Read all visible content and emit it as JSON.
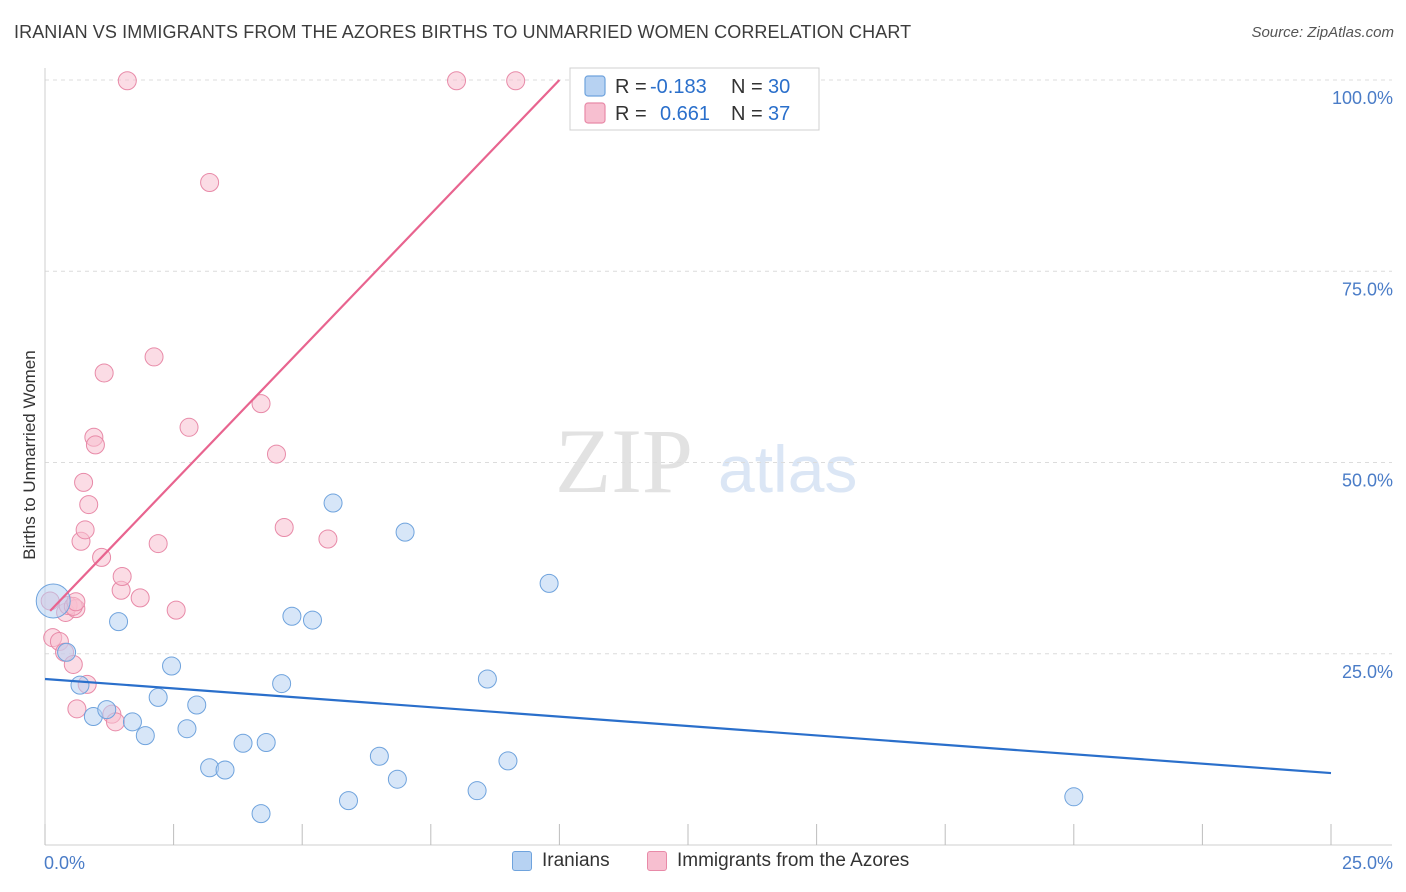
{
  "title": "IRANIAN VS IMMIGRANTS FROM THE AZORES BIRTHS TO UNMARRIED WOMEN CORRELATION CHART",
  "source": "Source: ZipAtlas.com",
  "watermark": {
    "zip": "ZIP",
    "atlas": "atlas"
  },
  "colors": {
    "blue_fill": "#b7d2f2",
    "blue_stroke": "#6fa3dd",
    "blue_line": "#2a6fcb",
    "pink_fill": "#f7bfd0",
    "pink_stroke": "#e88aa8",
    "pink_line": "#e8648f",
    "axis_label": "#4a7cc7",
    "grid": "#dcdcdc"
  },
  "legend_top": {
    "rows": [
      {
        "r_label": "R =",
        "r_value": "-0.183",
        "n_label": "N =",
        "n_value": "30"
      },
      {
        "r_label": "R =",
        "r_value": "0.661",
        "n_label": "N =",
        "n_value": "37"
      }
    ]
  },
  "legend_bottom": [
    "Iranians",
    "Immigrants from the Azores"
  ],
  "chart_data": {
    "type": "scatter",
    "title": "IRANIAN VS IMMIGRANTS FROM THE AZORES BIRTHS TO UNMARRIED WOMEN CORRELATION CHART",
    "xlabel": "",
    "ylabel": "Births to Unmarried Women",
    "xlim": [
      0,
      25
    ],
    "ylim": [
      0,
      102
    ],
    "x_tick_labels": [
      "0.0%",
      "25.0%"
    ],
    "y_tick_labels": [
      "25.0%",
      "50.0%",
      "75.0%",
      "100.0%"
    ],
    "y_ticks": [
      25,
      50,
      75,
      100
    ],
    "series": [
      {
        "name": "Iranians",
        "r": -0.183,
        "n": 30,
        "trend": {
          "x": [
            0,
            25
          ],
          "y": [
            21.7,
            9.4
          ]
        },
        "points": [
          {
            "x": 0.16,
            "y": 31.9,
            "big": true
          },
          {
            "x": 0.42,
            "y": 25.2
          },
          {
            "x": 0.68,
            "y": 20.9
          },
          {
            "x": 0.94,
            "y": 16.8
          },
          {
            "x": 1.2,
            "y": 17.7
          },
          {
            "x": 1.43,
            "y": 29.2
          },
          {
            "x": 1.7,
            "y": 16.1
          },
          {
            "x": 1.95,
            "y": 14.3
          },
          {
            "x": 2.2,
            "y": 19.3
          },
          {
            "x": 2.46,
            "y": 23.4
          },
          {
            "x": 2.76,
            "y": 15.2
          },
          {
            "x": 2.95,
            "y": 18.3
          },
          {
            "x": 3.2,
            "y": 10.1
          },
          {
            "x": 3.5,
            "y": 9.8
          },
          {
            "x": 3.85,
            "y": 13.3
          },
          {
            "x": 4.2,
            "y": 4.1
          },
          {
            "x": 4.3,
            "y": 13.4
          },
          {
            "x": 4.6,
            "y": 21.1
          },
          {
            "x": 4.8,
            "y": 29.9
          },
          {
            "x": 5.2,
            "y": 29.4
          },
          {
            "x": 5.6,
            "y": 44.7
          },
          {
            "x": 5.9,
            "y": 5.8
          },
          {
            "x": 6.5,
            "y": 11.6
          },
          {
            "x": 6.85,
            "y": 8.6
          },
          {
            "x": 7.0,
            "y": 40.9
          },
          {
            "x": 8.4,
            "y": 7.1
          },
          {
            "x": 8.6,
            "y": 21.7
          },
          {
            "x": 9.0,
            "y": 11.0
          },
          {
            "x": 9.8,
            "y": 34.2
          },
          {
            "x": 20.0,
            "y": 6.3
          }
        ]
      },
      {
        "name": "Immigrants from the Azores",
        "r": 0.661,
        "n": 37,
        "trend": {
          "x": [
            0.1,
            10.0
          ],
          "y": [
            30.6,
            100.0
          ]
        },
        "points": [
          {
            "x": 0.1,
            "y": 31.9
          },
          {
            "x": 0.15,
            "y": 27.1
          },
          {
            "x": 0.28,
            "y": 26.6
          },
          {
            "x": 0.38,
            "y": 25.2
          },
          {
            "x": 0.4,
            "y": 30.4
          },
          {
            "x": 0.45,
            "y": 31.3
          },
          {
            "x": 0.55,
            "y": 23.6
          },
          {
            "x": 0.6,
            "y": 30.9
          },
          {
            "x": 0.55,
            "y": 31.2
          },
          {
            "x": 0.6,
            "y": 31.8
          },
          {
            "x": 0.62,
            "y": 17.8
          },
          {
            "x": 0.7,
            "y": 39.7
          },
          {
            "x": 0.75,
            "y": 47.4
          },
          {
            "x": 0.78,
            "y": 41.2
          },
          {
            "x": 0.82,
            "y": 21.0
          },
          {
            "x": 0.85,
            "y": 44.5
          },
          {
            "x": 0.95,
            "y": 53.3
          },
          {
            "x": 0.98,
            "y": 52.3
          },
          {
            "x": 1.1,
            "y": 37.6
          },
          {
            "x": 1.15,
            "y": 61.7
          },
          {
            "x": 1.3,
            "y": 17.1
          },
          {
            "x": 1.37,
            "y": 16.1
          },
          {
            "x": 1.48,
            "y": 33.3
          },
          {
            "x": 1.5,
            "y": 35.1
          },
          {
            "x": 1.6,
            "y": 99.9
          },
          {
            "x": 1.85,
            "y": 32.3
          },
          {
            "x": 2.12,
            "y": 63.8
          },
          {
            "x": 2.2,
            "y": 39.4
          },
          {
            "x": 2.55,
            "y": 30.7
          },
          {
            "x": 2.8,
            "y": 54.6
          },
          {
            "x": 3.2,
            "y": 86.6
          },
          {
            "x": 4.2,
            "y": 57.7
          },
          {
            "x": 4.5,
            "y": 51.1
          },
          {
            "x": 4.65,
            "y": 41.5
          },
          {
            "x": 5.5,
            "y": 40.0
          },
          {
            "x": 8.0,
            "y": 99.9
          },
          {
            "x": 9.15,
            "y": 99.9
          }
        ]
      }
    ]
  }
}
